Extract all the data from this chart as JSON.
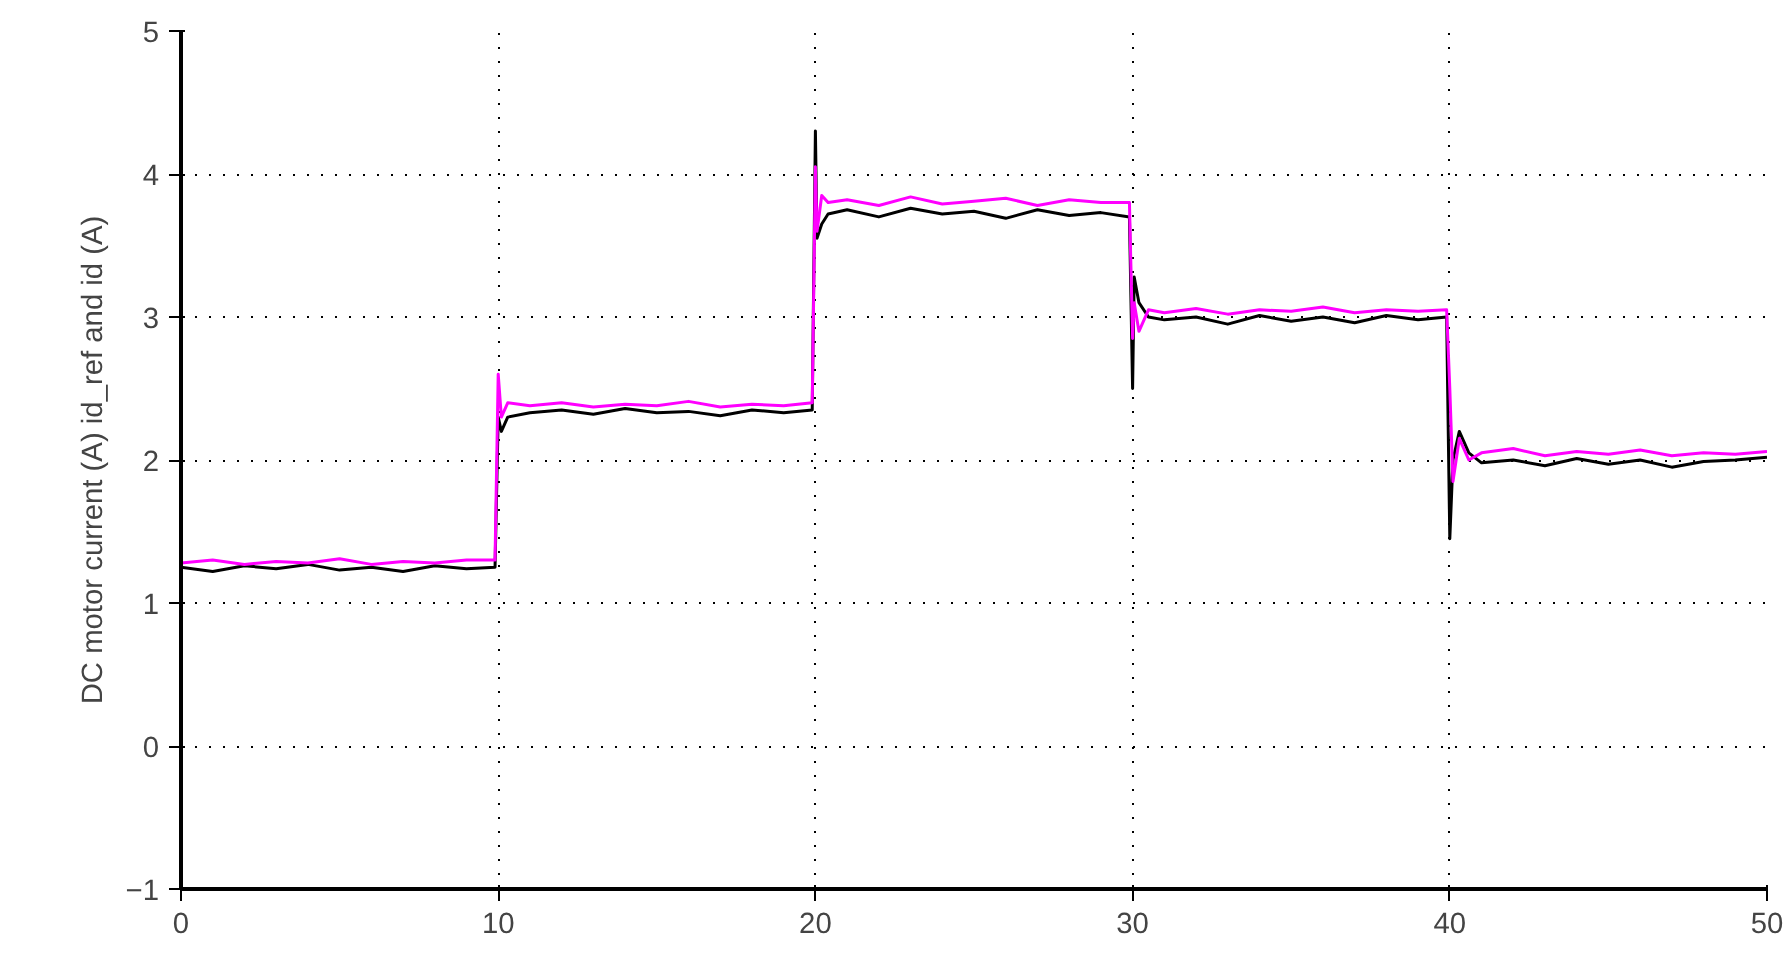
{
  "chart_data": {
    "type": "line",
    "ylabel": "DC motor current (A) id_ref and id (A)",
    "x": [
      0,
      1,
      2,
      3,
      4,
      5,
      6,
      7,
      8,
      9,
      9.9,
      10.0,
      10.1,
      10.3,
      11,
      12,
      13,
      14,
      15,
      16,
      17,
      18,
      19,
      19.9,
      20.0,
      20.05,
      20.2,
      20.4,
      21,
      22,
      23,
      24,
      25,
      26,
      27,
      28,
      29,
      29.9,
      30.0,
      30.05,
      30.2,
      30.5,
      31,
      32,
      33,
      34,
      35,
      36,
      37,
      38,
      39,
      39.9,
      40.0,
      40.1,
      40.3,
      40.6,
      41,
      42,
      43,
      44,
      45,
      46,
      47,
      48,
      49,
      50
    ],
    "series": [
      {
        "color": "#000000",
        "values": [
          1.25,
          1.22,
          1.26,
          1.24,
          1.27,
          1.23,
          1.25,
          1.22,
          1.26,
          1.24,
          1.25,
          2.3,
          2.2,
          2.3,
          2.33,
          2.35,
          2.32,
          2.36,
          2.33,
          2.34,
          2.31,
          2.35,
          2.33,
          2.35,
          4.3,
          3.55,
          3.65,
          3.72,
          3.75,
          3.7,
          3.76,
          3.72,
          3.74,
          3.69,
          3.75,
          3.71,
          3.73,
          3.7,
          2.5,
          3.28,
          3.1,
          3.0,
          2.98,
          3.0,
          2.95,
          3.01,
          2.97,
          3.0,
          2.96,
          3.01,
          2.98,
          3.0,
          1.45,
          2.0,
          2.2,
          2.05,
          1.98,
          2.0,
          1.96,
          2.01,
          1.97,
          2.0,
          1.95,
          1.99,
          2.0,
          2.02
        ]
      },
      {
        "color": "#ff00ff",
        "values": [
          1.28,
          1.3,
          1.27,
          1.29,
          1.28,
          1.31,
          1.27,
          1.29,
          1.28,
          1.3,
          1.3,
          2.6,
          2.3,
          2.4,
          2.38,
          2.4,
          2.37,
          2.39,
          2.38,
          2.41,
          2.37,
          2.39,
          2.38,
          2.4,
          4.05,
          3.6,
          3.85,
          3.8,
          3.82,
          3.78,
          3.84,
          3.79,
          3.81,
          3.83,
          3.78,
          3.82,
          3.8,
          3.8,
          2.85,
          3.1,
          2.9,
          3.05,
          3.03,
          3.06,
          3.02,
          3.05,
          3.04,
          3.07,
          3.03,
          3.05,
          3.04,
          3.05,
          2.5,
          1.85,
          2.15,
          2.0,
          2.05,
          2.08,
          2.03,
          2.06,
          2.04,
          2.07,
          2.03,
          2.05,
          2.04,
          2.06
        ]
      }
    ],
    "xlim": [
      0,
      50
    ],
    "ylim": [
      -1,
      5
    ],
    "xticks": [
      0,
      10,
      20,
      30,
      40,
      50
    ],
    "yticks": [
      -1,
      0,
      1,
      2,
      3,
      4,
      5
    ],
    "grid": true,
    "line_style": "solid"
  }
}
